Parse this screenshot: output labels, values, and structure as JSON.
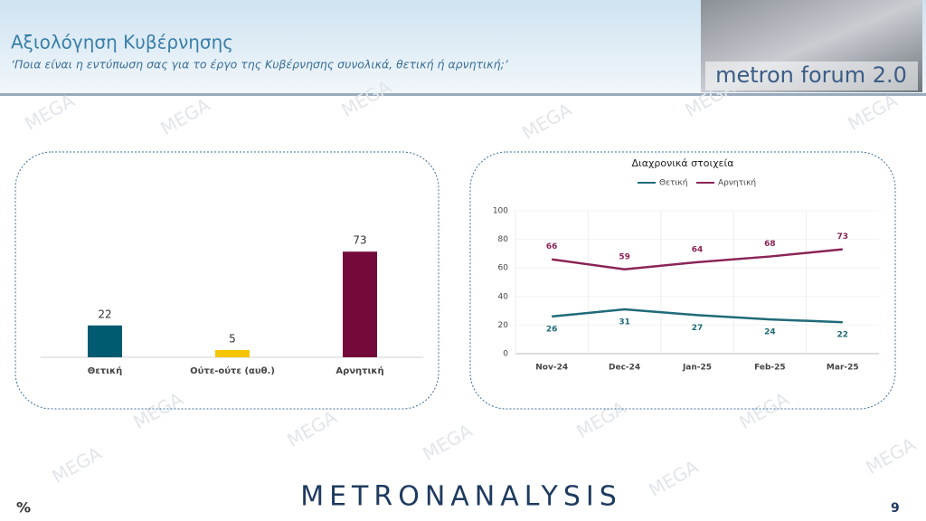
{
  "header": {
    "title": "Αξιολόγηση Κυβέρνησης",
    "subtitle": "‘Ποια είναι η εντύπωση σας για το έργο της Κυβέρνησης συνολικά, θετική ή αρνητική;’",
    "logo": "metron forum 2.0"
  },
  "watermark": "MEGA",
  "chart_data": [
    {
      "type": "bar",
      "categories": [
        "Θετική",
        "Ούτε-ούτε (αυθ.)",
        "Αρνητική"
      ],
      "values": [
        22,
        5,
        73
      ],
      "colors": [
        "#005a70",
        "#f5c400",
        "#740a3a"
      ]
    },
    {
      "type": "line",
      "title": "Διαχρονικά στοιχεία",
      "categories": [
        "Nov-24",
        "Dec-24",
        "Jan-25",
        "Feb-25",
        "Mar-25"
      ],
      "series": [
        {
          "name": "Θετική",
          "color": "#1f6b78",
          "values": [
            26,
            31,
            27,
            24,
            22
          ]
        },
        {
          "name": "Αρνητική",
          "color": "#8b2456",
          "values": [
            66,
            59,
            64,
            68,
            73
          ]
        }
      ],
      "ylim": [
        0,
        100
      ],
      "yticks": [
        0,
        20,
        40,
        60,
        80,
        100
      ],
      "grid": true
    }
  ],
  "footer": {
    "unit": "%",
    "page": "9",
    "brand": "METRONANALYSIS"
  }
}
